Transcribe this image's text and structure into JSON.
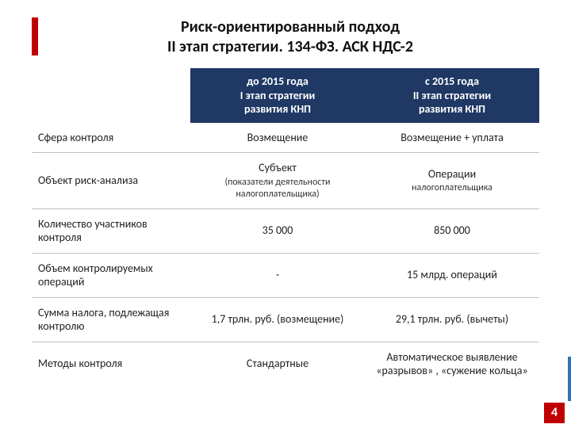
{
  "title_line1": "Риск-ориентированный подход",
  "title_line2": "II этап стратегии. 134-ФЗ. АСК НДС-2",
  "header": {
    "col2_l1": "до 2015 года",
    "col2_l2": "I этап стратегии",
    "col2_l3": "развития КНП",
    "col3_l1": "с 2015 года",
    "col3_l2": "II этап стратегии",
    "col3_l3": "развития КНП"
  },
  "rows": {
    "r1": {
      "label": "Сфера контроля",
      "c2": "Возмещение",
      "c3": "Возмещение + уплата"
    },
    "r2": {
      "label": "Объект риск-анализа",
      "c2": "Субъект",
      "c2_sub": "(показатели деятельности налогоплательщика)",
      "c3": "Операции",
      "c3_sub": "налогоплательщика"
    },
    "r3": {
      "label": "Количество участников контроля",
      "c2": "35 000",
      "c3": "850 000"
    },
    "r4": {
      "label": "Объем контролируемых операций",
      "c2": "-",
      "c3": "15 млрд. операций"
    },
    "r5": {
      "label": "Сумма налога, подлежащая контролю",
      "c2": "1,7 трлн. руб. (возмещение)",
      "c3": "29,1 трлн. руб. (вычеты)"
    },
    "r6": {
      "label": "Методы контроля",
      "c2": "Стандартные",
      "c3": "Автоматическое выявление «разрывов» , «сужение кольца»"
    }
  },
  "slide_number": "4",
  "colors": {
    "header_bg": "#1f3864",
    "accent_red": "#c00000",
    "border": "#bfbfbf",
    "text": "#222222",
    "white": "#ffffff"
  }
}
